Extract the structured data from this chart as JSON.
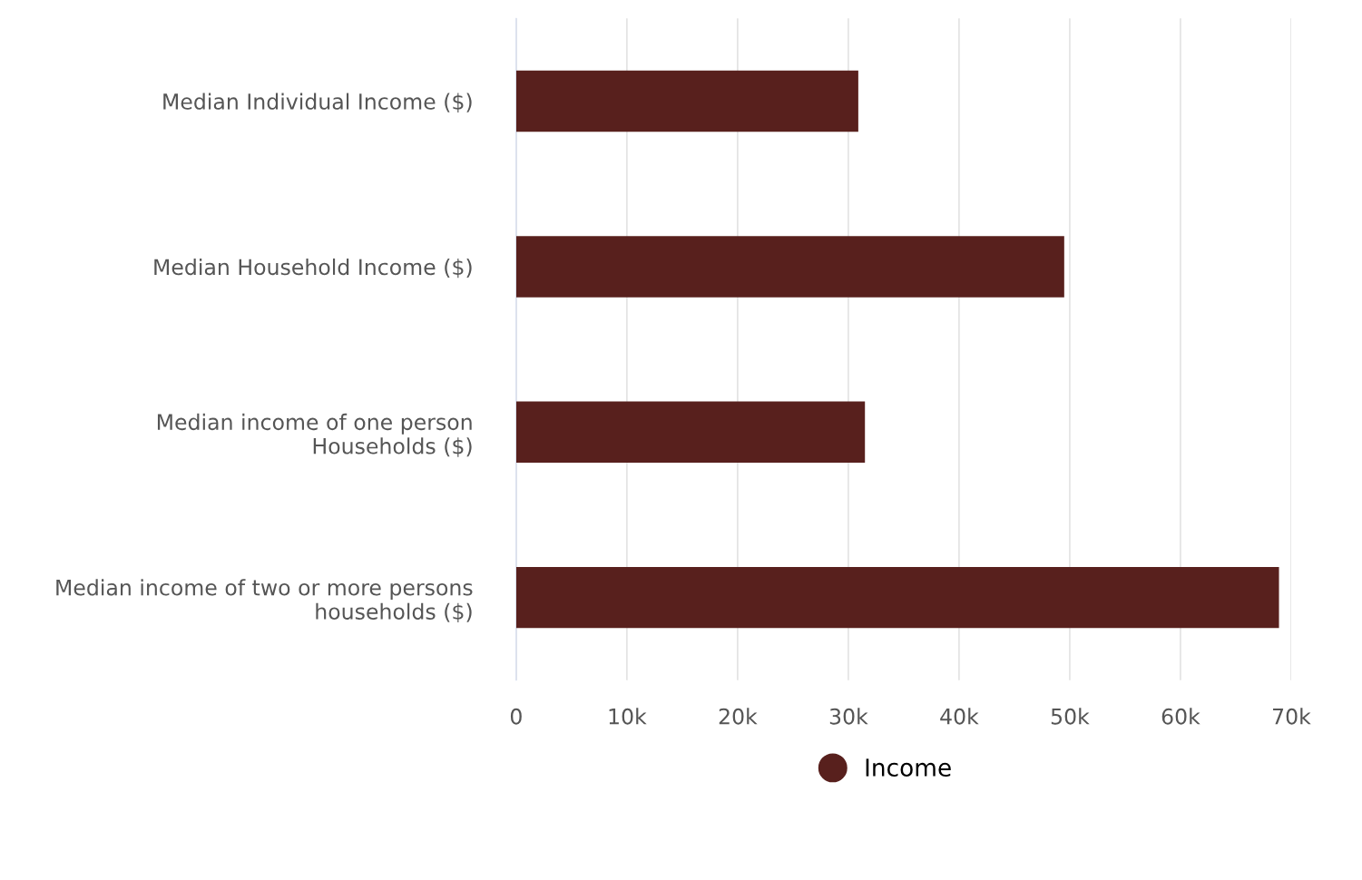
{
  "chart_data": {
    "type": "bar",
    "orientation": "horizontal",
    "categories": [
      "Median Individual Income ($)",
      "Median Household Income ($)",
      "Median income of one person\nHouseholds ($)",
      "Median income of two or more persons\nhouseholds ($)"
    ],
    "series": [
      {
        "name": "Income",
        "color": "#58201d",
        "values": [
          30900,
          49500,
          31500,
          68900
        ]
      }
    ],
    "xlim": [
      0,
      70000
    ],
    "xticks": [
      0,
      {
        "value": 10000,
        "label": "10k"
      },
      {
        "value": 20000,
        "label": "20k"
      },
      {
        "value": 30000,
        "label": "30k"
      },
      {
        "value": 40000,
        "label": "40k"
      },
      {
        "value": 50000,
        "label": "50k"
      },
      {
        "value": 60000,
        "label": "60k"
      },
      {
        "value": 70000,
        "label": "70k"
      }
    ],
    "grid": "x",
    "legend": "bottom",
    "marker": "circle"
  }
}
